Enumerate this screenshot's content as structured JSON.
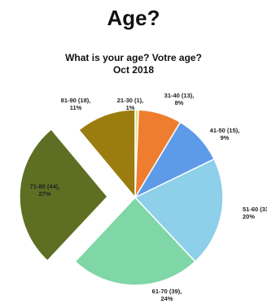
{
  "page": {
    "title": "Age?"
  },
  "chart_data": {
    "type": "pie",
    "title": "What is your age? Votre age?",
    "subtitle": "Oct 2018",
    "slices": [
      {
        "label": "21-30 (1),",
        "percent_label": "1%",
        "value": 1,
        "color": "#e8e07a",
        "exploded": false
      },
      {
        "label": "31-40 (13),",
        "percent_label": "8%",
        "value": 13,
        "color": "#ee7d2f",
        "exploded": false
      },
      {
        "label": "41-50 (15),",
        "percent_label": "9%",
        "value": 15,
        "color": "#5d9be8",
        "exploded": false
      },
      {
        "label": "51-60 (33),",
        "percent_label": "20%",
        "value": 33,
        "color": "#8ecfe9",
        "exploded": false
      },
      {
        "label": "61-70 (39),",
        "percent_label": "24%",
        "value": 39,
        "color": "#7fd6a6",
        "exploded": false
      },
      {
        "label": "71-80 (44),",
        "percent_label": "27%",
        "value": 44,
        "color": "#5e6e22",
        "exploded": true
      },
      {
        "label": "81-90 (18),",
        "percent_label": "11%",
        "value": 18,
        "color": "#9b7c0f",
        "exploded": false
      }
    ]
  }
}
